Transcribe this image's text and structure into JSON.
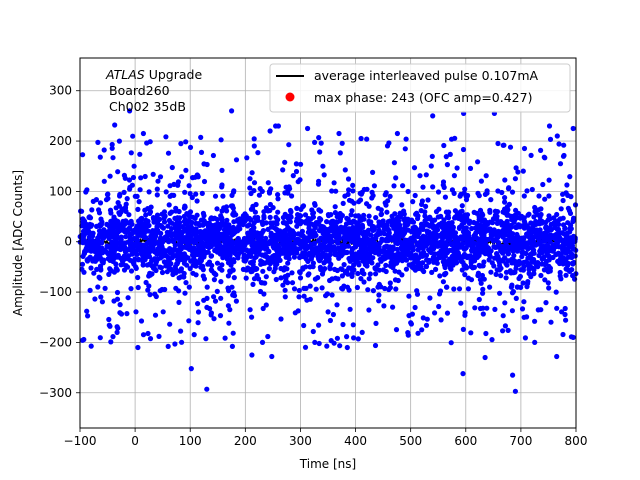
{
  "chart_data": {
    "type": "scatter",
    "title": "",
    "xlabel": "Time [ns]",
    "ylabel": "Amplitude [ADC Counts]",
    "xlim": [
      -100,
      800
    ],
    "ylim": [
      -370,
      365
    ],
    "xticks": [
      -100,
      0,
      100,
      200,
      300,
      400,
      500,
      600,
      700,
      800
    ],
    "yticks": [
      -300,
      -200,
      -100,
      0,
      100,
      200,
      300
    ],
    "grid": true,
    "legend_position": "top-right",
    "annotation": {
      "line1_italic": "ATLAS",
      "line1_rest": " Upgrade",
      "line2": "Board260",
      "line3": "Ch002 35dB"
    },
    "series": [
      {
        "name": "average interleaved pulse 0.107mA",
        "kind": "line",
        "color": "#000000",
        "x_range": [
          -100,
          800
        ],
        "approx_value": 0,
        "note_points": [
          [
            -100,
            -3
          ],
          [
            0,
            0
          ],
          [
            100,
            2
          ],
          [
            200,
            1
          ],
          [
            300,
            4
          ],
          [
            400,
            0
          ],
          [
            500,
            -2
          ],
          [
            600,
            1
          ],
          [
            700,
            -1
          ],
          [
            800,
            2
          ]
        ]
      },
      {
        "name": "max phase: 243 (OFC amp=0.427)",
        "kind": "scatter",
        "color": "#0000ff",
        "legend_marker_color": "#ff0000",
        "distribution": {
          "mean": 0,
          "core_sigma": 35,
          "x_range": [
            -100,
            800
          ]
        },
        "outliers": [
          [
            -10,
            260
          ],
          [
            175,
            260
          ],
          [
            245,
            220
          ],
          [
            255,
            230
          ],
          [
            260,
            230
          ],
          [
            313,
            225
          ],
          [
            410,
            205
          ],
          [
            476,
            215
          ],
          [
            540,
            250
          ],
          [
            596,
            255
          ],
          [
            652,
            255
          ],
          [
            752,
            230
          ],
          [
            766,
            210
          ],
          [
            795,
            225
          ],
          [
            -37,
            232
          ],
          [
            83,
            195
          ],
          [
            15,
            215
          ],
          [
            370,
            215
          ],
          [
            130,
            -293
          ],
          [
            102,
            -252
          ],
          [
            212,
            -225
          ],
          [
            248,
            -228
          ],
          [
            326,
            -200
          ],
          [
            385,
            -210
          ],
          [
            412,
            -180
          ],
          [
            520,
            -175
          ],
          [
            595,
            -262
          ],
          [
            635,
            -230
          ],
          [
            685,
            -265
          ],
          [
            690,
            -297
          ],
          [
            725,
            -200
          ],
          [
            765,
            -228
          ],
          [
            795,
            -190
          ],
          [
            60,
            -208
          ],
          [
            5,
            -210
          ]
        ]
      }
    ]
  }
}
